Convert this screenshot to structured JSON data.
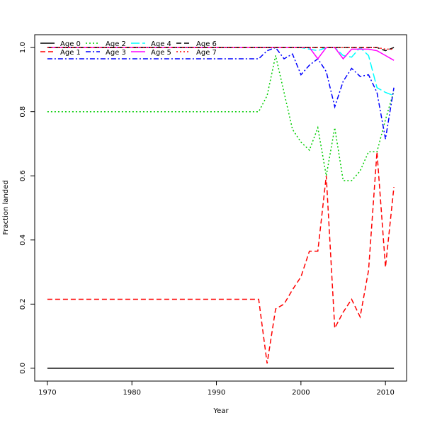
{
  "chart_data": {
    "type": "line",
    "title": "",
    "xlabel": "Year",
    "ylabel": "Fraction landed",
    "xlim": [
      1968.5,
      2012.5
    ],
    "ylim": [
      -0.04,
      1.04
    ],
    "x_ticks": [
      1970,
      1980,
      1990,
      2000,
      2010
    ],
    "x_tick_labels": [
      "1970",
      "1980",
      "1990",
      "2000",
      "2010"
    ],
    "y_ticks": [
      0.0,
      0.2,
      0.4,
      0.6,
      0.8,
      1.0
    ],
    "y_tick_labels": [
      "0.0",
      "0.2",
      "0.4",
      "0.6",
      "0.8",
      "1.0"
    ],
    "grid": false,
    "legend_position": "top-left",
    "x": [
      1970,
      1971,
      1972,
      1973,
      1974,
      1975,
      1976,
      1977,
      1978,
      1979,
      1980,
      1981,
      1982,
      1983,
      1984,
      1985,
      1986,
      1987,
      1988,
      1989,
      1990,
      1991,
      1992,
      1993,
      1994,
      1995,
      1996,
      1997,
      1998,
      1999,
      2000,
      2001,
      2002,
      2003,
      2004,
      2005,
      2006,
      2007,
      2008,
      2009,
      2010,
      2011
    ],
    "series": [
      {
        "name": "Age 0",
        "color": "#000000",
        "dash": "solid",
        "values": [
          0,
          0,
          0,
          0,
          0,
          0,
          0,
          0,
          0,
          0,
          0,
          0,
          0,
          0,
          0,
          0,
          0,
          0,
          0,
          0,
          0,
          0,
          0,
          0,
          0,
          0,
          0,
          0,
          0,
          0,
          0,
          0,
          0,
          0,
          0,
          0,
          0,
          0,
          0,
          0,
          0,
          0
        ]
      },
      {
        "name": "Age 1",
        "color": "#ff0000",
        "dash": "dashed",
        "values": [
          0.215,
          0.215,
          0.215,
          0.215,
          0.215,
          0.215,
          0.215,
          0.215,
          0.215,
          0.215,
          0.215,
          0.215,
          0.215,
          0.215,
          0.215,
          0.215,
          0.215,
          0.215,
          0.215,
          0.215,
          0.215,
          0.215,
          0.215,
          0.215,
          0.215,
          0.215,
          0.015,
          0.185,
          0.2,
          0.245,
          0.285,
          0.365,
          0.365,
          0.6,
          0.125,
          0.175,
          0.215,
          0.16,
          0.305,
          0.675,
          0.315,
          0.565
        ]
      },
      {
        "name": "Age 2",
        "color": "#00cd00",
        "dash": "dotted",
        "values": [
          0.8,
          0.8,
          0.8,
          0.8,
          0.8,
          0.8,
          0.8,
          0.8,
          0.8,
          0.8,
          0.8,
          0.8,
          0.8,
          0.8,
          0.8,
          0.8,
          0.8,
          0.8,
          0.8,
          0.8,
          0.8,
          0.8,
          0.8,
          0.8,
          0.8,
          0.8,
          0.85,
          0.975,
          0.86,
          0.745,
          0.705,
          0.68,
          0.75,
          0.6,
          0.75,
          0.585,
          0.585,
          0.615,
          0.675,
          0.675,
          0.775,
          0.865
        ]
      },
      {
        "name": "Age 3",
        "color": "#0000ff",
        "dash": "dashdot",
        "values": [
          0.965,
          0.965,
          0.965,
          0.965,
          0.965,
          0.965,
          0.965,
          0.965,
          0.965,
          0.965,
          0.965,
          0.965,
          0.965,
          0.965,
          0.965,
          0.965,
          0.965,
          0.965,
          0.965,
          0.965,
          0.965,
          0.965,
          0.965,
          0.965,
          0.965,
          0.965,
          0.99,
          1.0,
          0.965,
          0.98,
          0.915,
          0.945,
          0.965,
          0.925,
          0.815,
          0.895,
          0.935,
          0.91,
          0.915,
          0.86,
          0.715,
          0.875
        ]
      },
      {
        "name": "Age 4",
        "color": "#00ffff",
        "dash": "longdash",
        "values": [
          1,
          1,
          1,
          1,
          1,
          1,
          1,
          1,
          1,
          1,
          1,
          1,
          1,
          1,
          1,
          1,
          1,
          1,
          1,
          1,
          1,
          1,
          1,
          1,
          1,
          1,
          1,
          1,
          1,
          1,
          1,
          0.995,
          0.99,
          1.0,
          1.0,
          0.975,
          0.97,
          1.0,
          0.975,
          0.875,
          0.86,
          0.85
        ]
      },
      {
        "name": "Age 5",
        "color": "#ff00ff",
        "dash": "solid",
        "values": [
          1,
          1,
          1,
          1,
          1,
          1,
          1,
          1,
          1,
          1,
          1,
          1,
          1,
          1,
          1,
          1,
          1,
          1,
          1,
          1,
          1,
          1,
          1,
          1,
          1,
          1,
          1,
          1,
          1,
          1,
          1,
          1,
          0.965,
          1.0,
          1.0,
          0.965,
          0.995,
          0.995,
          0.995,
          0.99,
          0.975,
          0.96
        ]
      },
      {
        "name": "Age 6",
        "color": "#000000",
        "dash": "dashed",
        "values": [
          1,
          1,
          1,
          1,
          1,
          1,
          1,
          1,
          1,
          1,
          1,
          1,
          1,
          1,
          1,
          1,
          1,
          1,
          1,
          1,
          1,
          1,
          1,
          1,
          1,
          1,
          1,
          1,
          1,
          1,
          1,
          1,
          1,
          1,
          1,
          1,
          1,
          1,
          1,
          1,
          0.99,
          1.0
        ]
      },
      {
        "name": "Age 7",
        "color": "#ff0000",
        "dash": "dotted",
        "values": [
          1,
          1,
          1,
          1,
          1,
          1,
          1,
          1,
          1,
          1,
          1,
          1,
          1,
          1,
          1,
          1,
          1,
          1,
          1,
          1,
          1,
          1,
          1,
          1,
          1,
          1,
          1,
          1,
          1,
          1,
          1,
          1,
          1,
          1,
          1,
          1,
          1,
          1,
          1,
          1,
          0.995,
          0.995
        ]
      }
    ]
  }
}
